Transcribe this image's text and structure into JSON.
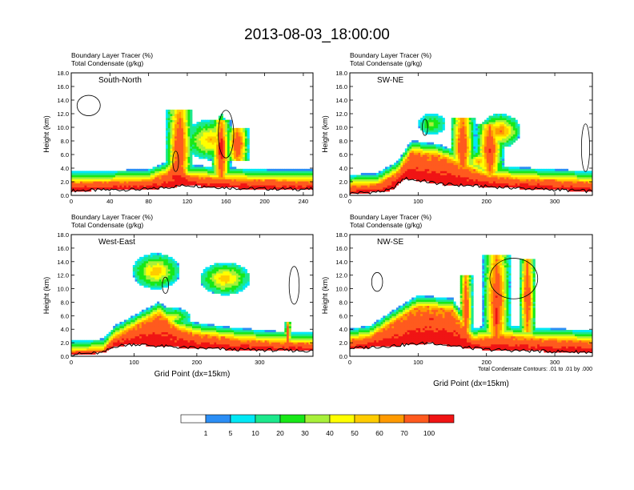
{
  "title": "2013-08-03_18:00:00",
  "footnote": "Total Condensate Contours: .01 to .01 by .000",
  "colorbar": {
    "colors": [
      "#ffffff",
      "#2b8ef5",
      "#00e8f5",
      "#1ce88c",
      "#18e818",
      "#a8f03a",
      "#ffff00",
      "#ffcc00",
      "#ff9a00",
      "#ff5a1e",
      "#f01414"
    ],
    "labels": [
      "1",
      "5",
      "10",
      "20",
      "30",
      "40",
      "50",
      "60",
      "70",
      "100"
    ]
  },
  "chart_data": [
    {
      "type": "heatmap",
      "panel_label": "South-North",
      "header_lines": [
        "Boundary Layer Tracer   (%)",
        "Total Condensate   (g/kg)"
      ],
      "ylabel": "Height (km)",
      "xlabel": "",
      "xlim": [
        0,
        250
      ],
      "ylim": [
        0,
        18
      ],
      "x_ticks": [
        0,
        40,
        80,
        120,
        160,
        200,
        240
      ],
      "y_ticks": [
        "0.0",
        "2.0",
        "4.0",
        "6.0",
        "8.0",
        "10.0",
        "12.0",
        "14.0",
        "16.0",
        "18.0"
      ],
      "terrain": [
        [
          0,
          0.7
        ],
        [
          40,
          0.8
        ],
        [
          80,
          0.9
        ],
        [
          100,
          1.2
        ],
        [
          120,
          1.5
        ],
        [
          140,
          1.3
        ],
        [
          180,
          1.0
        ],
        [
          250,
          0.9
        ]
      ],
      "boundary_layer_top": [
        [
          0,
          2.0
        ],
        [
          40,
          2.1
        ],
        [
          80,
          2.3
        ],
        [
          100,
          3.5
        ],
        [
          110,
          6.0
        ],
        [
          120,
          3.0
        ],
        [
          150,
          2.6
        ],
        [
          200,
          2.3
        ],
        [
          250,
          2.2
        ]
      ],
      "plumes": [
        {
          "x": 112,
          "base": 1.5,
          "top": 12.5,
          "halfwidth": 14
        },
        {
          "x": 155,
          "base": 1.2,
          "top": 11.0,
          "halfwidth": 10
        },
        {
          "x": 172,
          "base": 5.0,
          "top": 10.0,
          "halfwidth": 12
        }
      ],
      "clouds": [
        {
          "x": 145,
          "y": 8.2,
          "halfwidth": 28,
          "halfheight": 3.0,
          "value": 40
        },
        {
          "x": 155,
          "y": 7.0,
          "halfwidth": 6,
          "halfheight": 5.0,
          "value": 100
        }
      ],
      "condensate_contours": [
        {
          "cx": 18,
          "cy": 13.2,
          "rx": 12,
          "ry": 1.5
        },
        {
          "cx": 160,
          "cy": 9.0,
          "rx": 8,
          "ry": 3.5
        },
        {
          "cx": 108,
          "cy": 5.0,
          "rx": 3,
          "ry": 1.5
        }
      ]
    },
    {
      "type": "heatmap",
      "panel_label": "SW-NE",
      "header_lines": [
        "Boundary Layer Tracer   (%)",
        "Total Condensate   (g/kg)"
      ],
      "ylabel": "Height (km)",
      "xlabel": "",
      "xlim": [
        0,
        355
      ],
      "ylim": [
        0,
        18
      ],
      "x_ticks": [
        0,
        100,
        200,
        300
      ],
      "y_ticks": [
        "0.0",
        "2.0",
        "4.0",
        "6.0",
        "8.0",
        "10.0",
        "12.0",
        "14.0",
        "16.0",
        "18.0"
      ],
      "terrain": [
        [
          0,
          0.3
        ],
        [
          40,
          0.5
        ],
        [
          60,
          0.8
        ],
        [
          80,
          2.5
        ],
        [
          100,
          2.2
        ],
        [
          140,
          1.6
        ],
        [
          200,
          1.3
        ],
        [
          260,
          1.0
        ],
        [
          355,
          0.6
        ]
      ],
      "boundary_layer_top": [
        [
          0,
          1.5
        ],
        [
          40,
          1.7
        ],
        [
          70,
          3.5
        ],
        [
          90,
          6.5
        ],
        [
          130,
          6.0
        ],
        [
          160,
          4.8
        ],
        [
          200,
          3.0
        ],
        [
          260,
          2.5
        ],
        [
          355,
          2.0
        ]
      ],
      "plumes": [
        {
          "x": 165,
          "base": 3.0,
          "top": 11.5,
          "halfwidth": 18
        },
        {
          "x": 205,
          "base": 3.0,
          "top": 10.5,
          "halfwidth": 20
        }
      ],
      "clouds": [
        {
          "x": 220,
          "y": 9.5,
          "halfwidth": 30,
          "halfheight": 2.5,
          "value": 50
        },
        {
          "x": 190,
          "y": 5.0,
          "halfwidth": 25,
          "halfheight": 1.6,
          "value": 40
        },
        {
          "x": 120,
          "y": 10.5,
          "halfwidth": 20,
          "halfheight": 1.5,
          "value": 20
        }
      ],
      "condensate_contours": [
        {
          "cx": 345,
          "cy": 7.0,
          "rx": 6,
          "ry": 3.5
        },
        {
          "cx": 110,
          "cy": 10.0,
          "rx": 4,
          "ry": 1.2
        }
      ]
    },
    {
      "type": "heatmap",
      "panel_label": "West-East",
      "header_lines": [
        "Boundary Layer Tracer   (%)",
        "Total Condensate   (g/kg)"
      ],
      "ylabel": "Height (km)",
      "xlabel": "Grid Point (dx=15km)",
      "xlim": [
        0,
        385
      ],
      "ylim": [
        0,
        18
      ],
      "x_ticks": [
        0,
        100,
        200,
        300
      ],
      "y_ticks": [
        "0.0",
        "2.0",
        "4.0",
        "6.0",
        "8.0",
        "10.0",
        "12.0",
        "14.0",
        "16.0",
        "18.0"
      ],
      "terrain": [
        [
          0,
          0.3
        ],
        [
          50,
          0.5
        ],
        [
          60,
          1.0
        ],
        [
          70,
          1.5
        ],
        [
          100,
          1.8
        ],
        [
          140,
          1.5
        ],
        [
          200,
          1.2
        ],
        [
          260,
          1.0
        ],
        [
          385,
          0.8
        ]
      ],
      "boundary_layer_top": [
        [
          0,
          0.8
        ],
        [
          50,
          1.0
        ],
        [
          70,
          3.0
        ],
        [
          100,
          4.5
        ],
        [
          140,
          6.5
        ],
        [
          170,
          4.2
        ],
        [
          200,
          3.4
        ],
        [
          260,
          2.7
        ],
        [
          320,
          2.2
        ],
        [
          385,
          2.0
        ]
      ],
      "plumes": [
        {
          "x": 345,
          "base": 1.0,
          "top": 5.0,
          "halfwidth": 5
        }
      ],
      "clouds": [
        {
          "x": 135,
          "y": 12.6,
          "halfwidth": 38,
          "halfheight": 2.6,
          "value": 40
        },
        {
          "x": 245,
          "y": 11.5,
          "halfwidth": 40,
          "halfheight": 2.4,
          "value": 40
        },
        {
          "x": 160,
          "y": 5.8,
          "halfwidth": 30,
          "halfheight": 1.4,
          "value": 30
        }
      ],
      "condensate_contours": [
        {
          "cx": 355,
          "cy": 10.5,
          "rx": 8,
          "ry": 2.8
        },
        {
          "cx": 150,
          "cy": 10.5,
          "rx": 5,
          "ry": 1.2
        }
      ]
    },
    {
      "type": "heatmap",
      "panel_label": "NW-SE",
      "header_lines": [
        "Boundary Layer Tracer   (%)",
        "Total Condensate   (g/kg)"
      ],
      "ylabel": "Height (km)",
      "xlabel": "Grid Point (dx=15km)",
      "xlim": [
        0,
        355
      ],
      "ylim": [
        0,
        18
      ],
      "x_ticks": [
        0,
        100,
        200,
        300
      ],
      "y_ticks": [
        "0.0",
        "2.0",
        "4.0",
        "6.0",
        "8.0",
        "10.0",
        "12.0",
        "14.0",
        "16.0",
        "18.0"
      ],
      "terrain": [
        [
          0,
          1.2
        ],
        [
          40,
          1.4
        ],
        [
          80,
          1.7
        ],
        [
          120,
          2.0
        ],
        [
          160,
          1.4
        ],
        [
          200,
          1.0
        ],
        [
          260,
          0.8
        ],
        [
          355,
          0.6
        ]
      ],
      "boundary_layer_top": [
        [
          0,
          2.5
        ],
        [
          30,
          3.0
        ],
        [
          60,
          5.0
        ],
        [
          100,
          7.5
        ],
        [
          150,
          7.0
        ],
        [
          180,
          2.6
        ],
        [
          220,
          3.2
        ],
        [
          270,
          2.7
        ],
        [
          355,
          2.3
        ]
      ],
      "plumes": [
        {
          "x": 215,
          "base": 1.5,
          "top": 15.0,
          "halfwidth": 20
        },
        {
          "x": 260,
          "base": 3.5,
          "top": 14.5,
          "halfwidth": 12
        },
        {
          "x": 170,
          "base": 2.0,
          "top": 12.0,
          "halfwidth": 10
        }
      ],
      "clouds": [
        {
          "x": 215,
          "y": 6.0,
          "halfwidth": 5,
          "halfheight": 4.0,
          "value": 100
        },
        {
          "x": 120,
          "y": 5.5,
          "halfwidth": 45,
          "halfheight": 2.0,
          "value": 70
        }
      ],
      "condensate_contours": [
        {
          "cx": 240,
          "cy": 11.5,
          "rx": 35,
          "ry": 3.0
        },
        {
          "cx": 40,
          "cy": 11.0,
          "rx": 8,
          "ry": 1.4
        }
      ]
    }
  ]
}
